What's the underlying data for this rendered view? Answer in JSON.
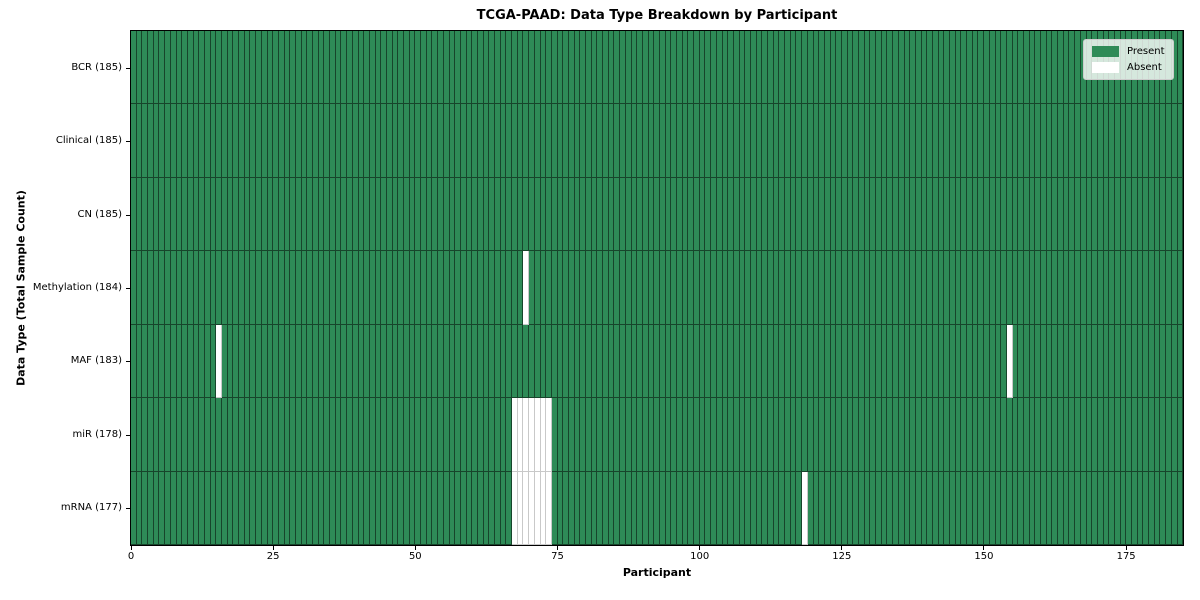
{
  "chart_data": {
    "type": "heatmap",
    "title": "TCGA-PAAD: Data Type Breakdown by Participant",
    "xlabel": "Participant",
    "ylabel": "Data Type (Total Sample Count)",
    "x_range": [
      0,
      185
    ],
    "x_ticks": [
      0,
      25,
      50,
      75,
      100,
      125,
      150,
      175
    ],
    "n_participants": 185,
    "grid": true,
    "legend_position": "upper right",
    "rows": [
      {
        "key": "bcr",
        "label": "BCR (185)",
        "total": 185,
        "absent_participants": []
      },
      {
        "key": "clinical",
        "label": "Clinical (185)",
        "total": 185,
        "absent_participants": []
      },
      {
        "key": "cn",
        "label": "CN (185)",
        "total": 185,
        "absent_participants": []
      },
      {
        "key": "methylation",
        "label": "Methylation (184)",
        "total": 184,
        "absent_participants": [
          69
        ]
      },
      {
        "key": "maf",
        "label": "MAF (183)",
        "total": 183,
        "absent_participants": [
          15,
          154
        ]
      },
      {
        "key": "mir",
        "label": "miR (178)",
        "total": 178,
        "absent_participants": [
          67,
          68,
          69,
          70,
          71,
          72,
          73
        ]
      },
      {
        "key": "mrna",
        "label": "mRNA (177)",
        "total": 177,
        "absent_participants": [
          67,
          68,
          69,
          70,
          71,
          72,
          73,
          118
        ]
      }
    ],
    "legend": [
      {
        "label": "Present",
        "color": "#2e8b57"
      },
      {
        "label": "Absent",
        "color": "#ffffff"
      }
    ],
    "colors": {
      "present": "#2e8b57",
      "absent": "#ffffff",
      "edge_on_present": "#00000080",
      "edge_on_absent": "#c9c9c9",
      "spine": "#000000",
      "legend_bg": "#ffffffcc",
      "legend_border": "#cccccc",
      "text": "#000000"
    }
  }
}
